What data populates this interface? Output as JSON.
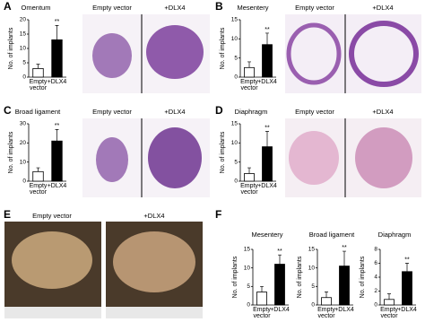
{
  "panel_letters": [
    "A",
    "B",
    "C",
    "D",
    "E",
    "F"
  ],
  "image_labels": {
    "A": [
      "Empty vector",
      "+DLX4"
    ],
    "B": [
      "Empty vector",
      "+DLX4"
    ],
    "C": [
      "Empty vector",
      "+DLX4"
    ],
    "D": [
      "Empty vector",
      "+DLX4"
    ],
    "E": [
      "Empty vector",
      "+DLX4"
    ]
  },
  "chart_data": [
    {
      "type": "bar",
      "title": "Omentum",
      "ylabel": "No. of implants",
      "categories": [
        "Empty vector",
        "+DLX4"
      ],
      "values": [
        3,
        13
      ],
      "errors": [
        1.5,
        5
      ],
      "colors": [
        "#ffffff",
        "#000000"
      ],
      "ylim": [
        0,
        20
      ],
      "yticks": [
        0,
        5,
        10,
        15,
        20
      ],
      "annotation": "**"
    },
    {
      "type": "bar",
      "title": "Mesentery",
      "ylabel": "No. of implants",
      "categories": [
        "Empty vector",
        "+DLX4"
      ],
      "values": [
        2.5,
        8.5
      ],
      "errors": [
        1.5,
        3
      ],
      "colors": [
        "#ffffff",
        "#000000"
      ],
      "ylim": [
        0,
        15
      ],
      "yticks": [
        0,
        5,
        10,
        15
      ],
      "annotation": "**"
    },
    {
      "type": "bar",
      "title": "Broad ligament",
      "ylabel": "No. of implants",
      "categories": [
        "Empty vector",
        "+DLX4"
      ],
      "values": [
        5,
        21
      ],
      "errors": [
        2,
        6
      ],
      "colors": [
        "#ffffff",
        "#000000"
      ],
      "ylim": [
        0,
        30
      ],
      "yticks": [
        0,
        10,
        20,
        30
      ],
      "annotation": "**"
    },
    {
      "type": "bar",
      "title": "Diaphragm",
      "ylabel": "No. of implants",
      "categories": [
        "Empty vector",
        "+DLX4"
      ],
      "values": [
        2,
        9
      ],
      "errors": [
        1.5,
        4
      ],
      "colors": [
        "#ffffff",
        "#000000"
      ],
      "ylim": [
        0,
        15
      ],
      "yticks": [
        0,
        5,
        10,
        15
      ],
      "annotation": "**"
    },
    {
      "type": "bar",
      "title": "Mesentery",
      "ylabel": "No. of implants",
      "categories": [
        "Empty vector",
        "+DLX4"
      ],
      "values": [
        3.5,
        11
      ],
      "errors": [
        1.5,
        2.5
      ],
      "colors": [
        "#ffffff",
        "#000000"
      ],
      "ylim": [
        0,
        15
      ],
      "yticks": [
        0,
        5,
        10,
        15
      ],
      "annotation": "**"
    },
    {
      "type": "bar",
      "title": "Broad ligament",
      "ylabel": "No. of implants",
      "categories": [
        "Empty vector",
        "+DLX4"
      ],
      "values": [
        2,
        10.5
      ],
      "errors": [
        1.5,
        4
      ],
      "colors": [
        "#ffffff",
        "#000000"
      ],
      "ylim": [
        0,
        15
      ],
      "yticks": [
        0,
        5,
        10,
        15
      ],
      "annotation": "**"
    },
    {
      "type": "bar",
      "title": "Diaphragm",
      "ylabel": "No. of implants",
      "categories": [
        "Empty vector",
        "+DLX4"
      ],
      "values": [
        0.8,
        4.8
      ],
      "errors": [
        0.8,
        1.2
      ],
      "colors": [
        "#ffffff",
        "#000000"
      ],
      "ylim": [
        0,
        8
      ],
      "yticks": [
        0,
        2,
        4,
        6,
        8
      ],
      "annotation": "**"
    }
  ]
}
